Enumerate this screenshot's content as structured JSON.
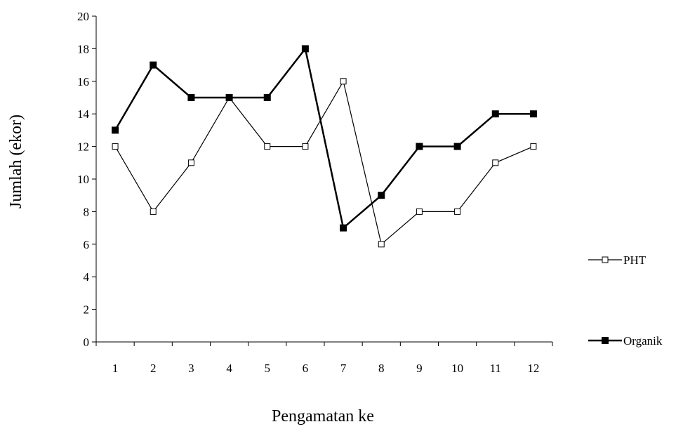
{
  "chart_data": {
    "type": "line",
    "xlabel": "Pengamatan ke",
    "ylabel": "Jumlah (ekor)",
    "categories": [
      "1",
      "2",
      "3",
      "4",
      "5",
      "6",
      "7",
      "8",
      "9",
      "10",
      "11",
      "12"
    ],
    "ylim": [
      0,
      20
    ],
    "yticks": [
      0,
      2,
      4,
      6,
      8,
      10,
      12,
      14,
      16,
      18,
      20
    ],
    "grid": false,
    "legend_position": "right",
    "series": [
      {
        "name": "PHT",
        "marker": "hollow-square",
        "values": [
          12,
          8,
          11,
          15,
          12,
          12,
          16,
          6,
          8,
          8,
          11,
          12
        ]
      },
      {
        "name": "Organik",
        "marker": "filled-square",
        "values": [
          13,
          17,
          15,
          15,
          15,
          18,
          7,
          9,
          12,
          12,
          14,
          14
        ]
      }
    ],
    "colors": {
      "axis": "#000000",
      "pht_fill": "#ffffff",
      "organik_fill": "#000000"
    }
  }
}
